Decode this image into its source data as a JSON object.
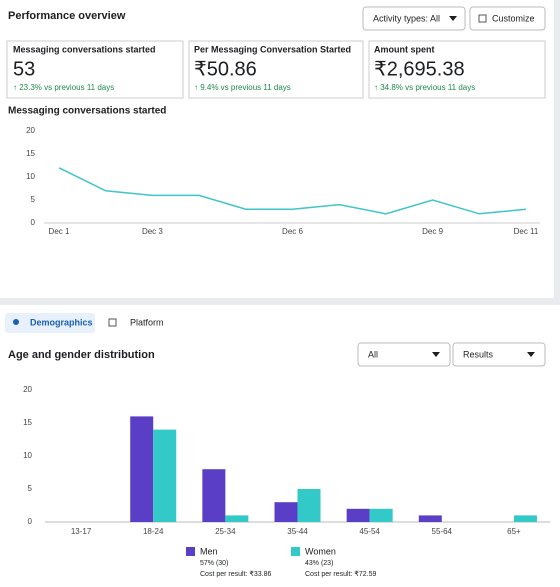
{
  "header": {
    "title": "Performance overview",
    "activity_button": "Activity types: All",
    "customize_button": "Customize"
  },
  "metrics": [
    {
      "title": "Messaging conversations started",
      "value": "53",
      "change": "↑ 23.3% vs previous 11 days"
    },
    {
      "title": "Per Messaging Conversation Started",
      "value": "₹50.86",
      "change": "↑ 9.4% vs previous 11 days"
    },
    {
      "title": "Amount spent",
      "value": "₹2,695.38",
      "change": "↑ 34.8% vs previous 11 days"
    }
  ],
  "tabs": [
    "Demographics",
    "Platform"
  ],
  "filters": [
    "All",
    "Results"
  ],
  "chart_data": [
    {
      "type": "line",
      "title": "Messaging conversations started",
      "categories": [
        "Dec 1",
        null,
        "Dec 3",
        null,
        null,
        "Dec 6",
        null,
        null,
        "Dec 9",
        null,
        "Dec 11"
      ],
      "values": [
        12,
        7,
        6,
        6,
        3,
        3,
        4,
        2,
        5,
        2,
        3
      ],
      "color": "#3ec5c8",
      "ylim": [
        0,
        20
      ],
      "yticks": [
        0,
        5,
        10,
        15,
        20
      ],
      "grid": false
    },
    {
      "type": "bar",
      "title": "Age and gender distribution",
      "categories": [
        "13-17",
        "18-24",
        "25-34",
        "35-44",
        "45-54",
        "55-64",
        "65+"
      ],
      "series": [
        {
          "name": "Men",
          "color": "#5b3ec6",
          "values": [
            0,
            16,
            8,
            3,
            2,
            1,
            0
          ],
          "share": "57% (30)",
          "cost": "Cost per result: ₹33.86"
        },
        {
          "name": "Women",
          "color": "#33c9c9",
          "values": [
            0,
            14,
            1,
            5,
            2,
            0,
            1
          ],
          "share": "43% (23)",
          "cost": "Cost per result: ₹72.59"
        }
      ],
      "ylim": [
        0,
        20
      ],
      "yticks": [
        0,
        5,
        10,
        15,
        20
      ],
      "grid": false
    }
  ]
}
